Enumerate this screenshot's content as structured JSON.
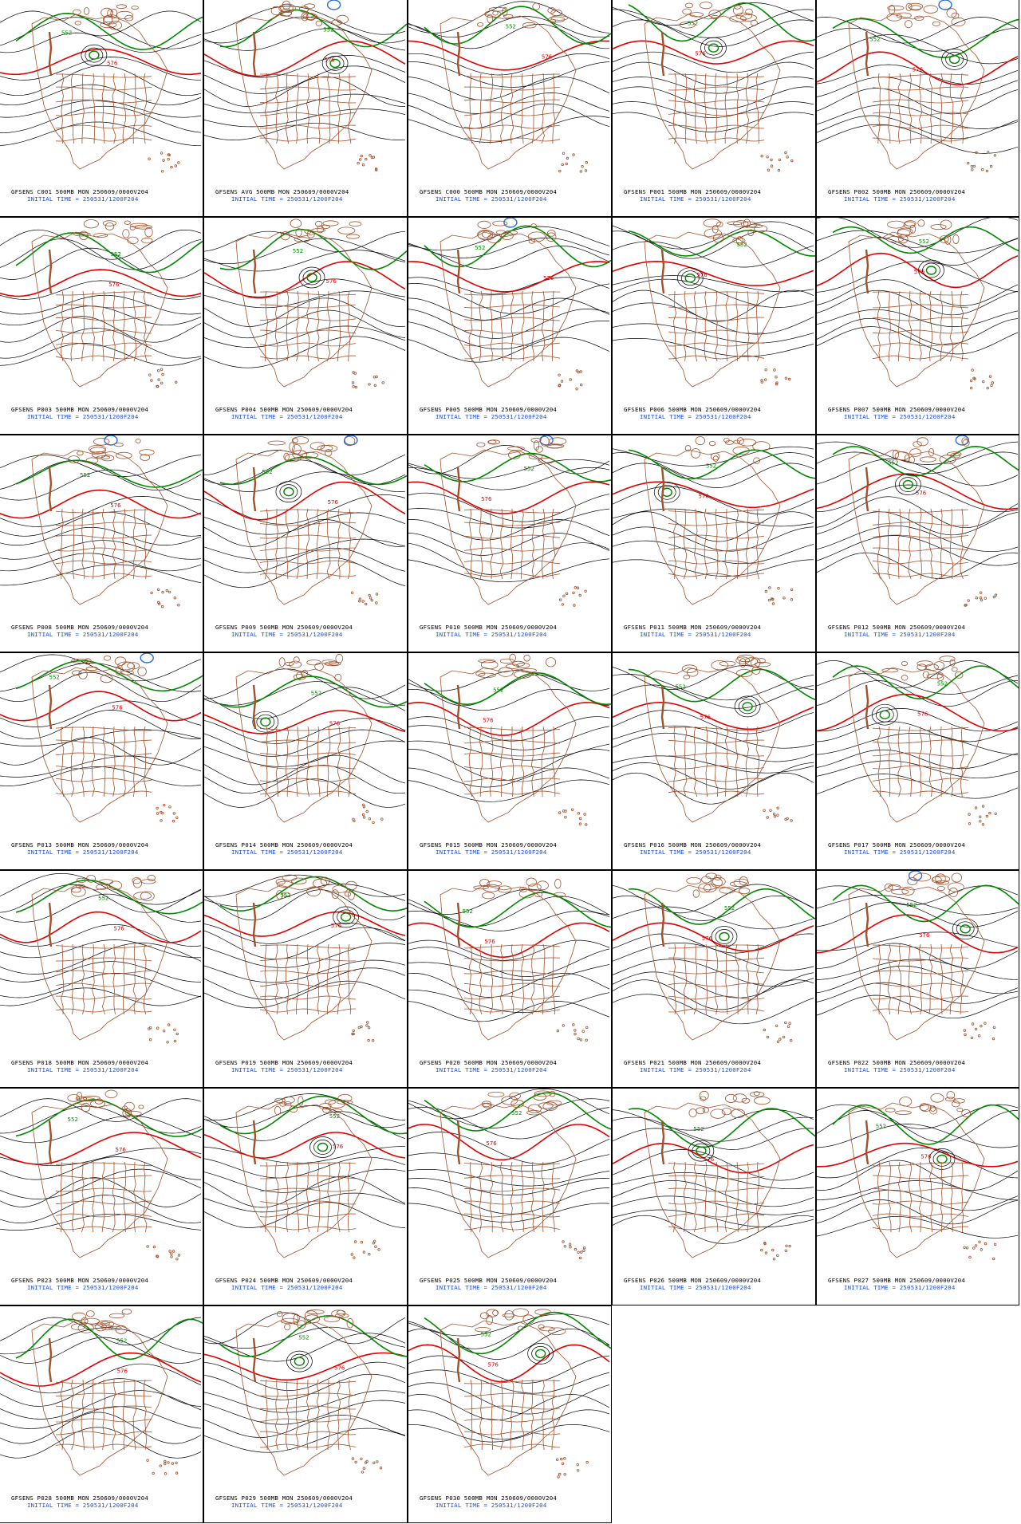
{
  "colors": {
    "contour": "#000000",
    "contour_576": "#e00000",
    "contour_552": "#008800",
    "contour_low": "#2a6cd8",
    "geography": "#a0522d",
    "initial_time_text": "#1d4fd0"
  },
  "contour_labels": {
    "red": "576",
    "green": "552"
  },
  "panels": [
    {
      "id": "C001",
      "title": "GFSENS C001 500MB MON 250609/0000V204",
      "init": "INITIAL TIME = 250531/1200F204"
    },
    {
      "id": "AVG",
      "title": "GFSENS AVG 500MB MON 250609/0000V204",
      "init": "INITIAL TIME = 250531/1200F204"
    },
    {
      "id": "C000",
      "title": "GFSENS C000 500MB MON 250609/0000V204",
      "init": "INITIAL TIME = 250531/1200F204"
    },
    {
      "id": "P001",
      "title": "GFSENS P001 500MB MON 250609/0000V204",
      "init": "INITIAL TIME = 250531/1200F204"
    },
    {
      "id": "P002",
      "title": "GFSENS P002 500MB MON 250609/0000V204",
      "init": "INITIAL TIME = 250531/1200F204"
    },
    {
      "id": "P003",
      "title": "GFSENS P003 500MB MON 250609/0000V204",
      "init": "INITIAL TIME = 250531/1200F204"
    },
    {
      "id": "P004",
      "title": "GFSENS P004 500MB MON 250609/0000V204",
      "init": "INITIAL TIME = 250531/1200F204"
    },
    {
      "id": "P005",
      "title": "GFSENS P005 500MB MON 250609/0000V204",
      "init": "INITIAL TIME = 250531/1200F204"
    },
    {
      "id": "P006",
      "title": "GFSENS P006 500MB MON 250609/0000V204",
      "init": "INITIAL TIME = 250531/1200F204"
    },
    {
      "id": "P007",
      "title": "GFSENS P007 500MB MON 250609/0000V204",
      "init": "INITIAL TIME = 250531/1200F204"
    },
    {
      "id": "P008",
      "title": "GFSENS P008 500MB MON 250609/0000V204",
      "init": "INITIAL TIME = 250531/1200F204"
    },
    {
      "id": "P009",
      "title": "GFSENS P009 500MB MON 250609/0000V204",
      "init": "INITIAL TIME = 250531/1200F204"
    },
    {
      "id": "P010",
      "title": "GFSENS P010 500MB MON 250609/0000V204",
      "init": "INITIAL TIME = 250531/1200F204"
    },
    {
      "id": "P011",
      "title": "GFSENS P011 500MB MON 250609/0000V204",
      "init": "INITIAL TIME = 250531/1200F204"
    },
    {
      "id": "P012",
      "title": "GFSENS P012 500MB MON 250609/0000V204",
      "init": "INITIAL TIME = 250531/1200F204"
    },
    {
      "id": "P013",
      "title": "GFSENS P013 500MB MON 250609/0000V204",
      "init": "INITIAL TIME = 250531/1200F204"
    },
    {
      "id": "P014",
      "title": "GFSENS P014 500MB MON 250609/0000V204",
      "init": "INITIAL TIME = 250531/1200F204"
    },
    {
      "id": "P015",
      "title": "GFSENS P015 500MB MON 250609/0000V204",
      "init": "INITIAL TIME = 250531/1200F204"
    },
    {
      "id": "P016",
      "title": "GFSENS P016 500MB MON 250609/0000V204",
      "init": "INITIAL TIME = 250531/1200F204"
    },
    {
      "id": "P017",
      "title": "GFSENS P017 500MB MON 250609/0000V204",
      "init": "INITIAL TIME = 250531/1200F204"
    },
    {
      "id": "P018",
      "title": "GFSENS P018 500MB MON 250609/0000V204",
      "init": "INITIAL TIME = 250531/1200F204"
    },
    {
      "id": "P019",
      "title": "GFSENS P019 500MB MON 250609/0000V204",
      "init": "INITIAL TIME = 250531/1200F204"
    },
    {
      "id": "P020",
      "title": "GFSENS P020 500MB MON 250609/0000V204",
      "init": "INITIAL TIME = 250531/1200F204"
    },
    {
      "id": "P021",
      "title": "GFSENS P021 500MB MON 250609/0000V204",
      "init": "INITIAL TIME = 250531/1200F204"
    },
    {
      "id": "P022",
      "title": "GFSENS P022 500MB MON 250609/0000V204",
      "init": "INITIAL TIME = 250531/1200F204"
    },
    {
      "id": "P023",
      "title": "GFSENS P023 500MB MON 250609/0000V204",
      "init": "INITIAL TIME = 250531/1200F204"
    },
    {
      "id": "P024",
      "title": "GFSENS P024 500MB MON 250609/0000V204",
      "init": "INITIAL TIME = 250531/1200F204"
    },
    {
      "id": "P025",
      "title": "GFSENS P025 500MB MON 250609/0000V204",
      "init": "INITIAL TIME = 250531/1200F204"
    },
    {
      "id": "P026",
      "title": "GFSENS P026 500MB MON 250609/0000V204",
      "init": "INITIAL TIME = 250531/1200F204"
    },
    {
      "id": "P027",
      "title": "GFSENS P027 500MB MON 250609/0000V204",
      "init": "INITIAL TIME = 250531/1200F204"
    },
    {
      "id": "P028",
      "title": "GFSENS P028 500MB MON 250609/0000V204",
      "init": "INITIAL TIME = 250531/1200F204"
    },
    {
      "id": "P029",
      "title": "GFSENS P029 500MB MON 250609/0000V204",
      "init": "INITIAL TIME = 250531/1200F204"
    },
    {
      "id": "P030",
      "title": "GFSENS P030 500MB MON 250609/0000V204",
      "init": "INITIAL TIME = 250531/1200F204"
    }
  ]
}
